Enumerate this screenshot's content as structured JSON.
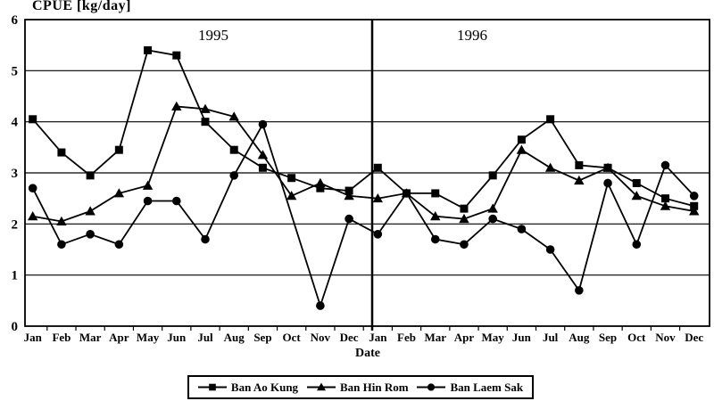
{
  "title": "CPUE [kg/day]",
  "colors": {
    "ink": "#000000",
    "background": "#ffffff"
  },
  "chart_data": {
    "type": "line",
    "title": "CPUE [kg/day]",
    "ylabel": "CPUE [kg/day]",
    "xlabel": "Date",
    "ylim": [
      0,
      6
    ],
    "yticks": [
      0,
      1,
      2,
      3,
      4,
      5,
      6
    ],
    "grid": true,
    "legend_position": "bottom",
    "years": [
      "1995",
      "1996"
    ],
    "months": [
      "Jan",
      "Feb",
      "Mar",
      "Apr",
      "May",
      "Jun",
      "Jul",
      "Aug",
      "Sep",
      "Oct",
      "Nov",
      "Dec"
    ],
    "series": [
      {
        "name": "Ban Ao Kung",
        "marker": "square",
        "values": [
          4.05,
          3.4,
          2.95,
          3.45,
          5.4,
          5.3,
          4.0,
          3.45,
          3.1,
          2.9,
          2.7,
          2.65,
          3.1,
          2.6,
          2.6,
          2.3,
          2.95,
          3.65,
          4.05,
          3.15,
          3.1,
          2.8,
          2.5,
          2.35
        ]
      },
      {
        "name": "Ban Hin Rom",
        "marker": "triangle",
        "values": [
          2.15,
          2.05,
          2.25,
          2.6,
          2.75,
          4.3,
          4.25,
          4.1,
          3.35,
          2.55,
          2.8,
          2.55,
          2.5,
          2.6,
          2.15,
          2.1,
          2.3,
          3.45,
          3.1,
          2.85,
          3.1,
          2.55,
          2.35,
          2.25
        ]
      },
      {
        "name": "Ban Laem Sak",
        "marker": "circle",
        "values": [
          2.7,
          1.6,
          1.8,
          1.6,
          2.45,
          2.45,
          1.7,
          2.95,
          3.95,
          null,
          0.4,
          2.1,
          1.8,
          2.6,
          1.7,
          1.6,
          2.1,
          1.9,
          1.5,
          0.7,
          2.8,
          1.6,
          3.15,
          2.55
        ]
      }
    ]
  }
}
